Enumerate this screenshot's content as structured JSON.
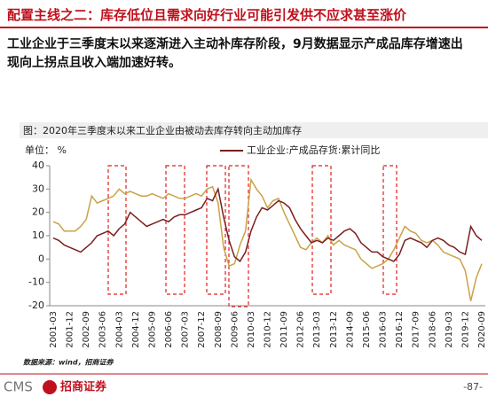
{
  "header": {
    "title": "配置主线之二：库存低位且需求向好行业可能引发供不应求甚至涨价",
    "text": "工业企业于三季度末以来逐渐进入主动补库存阶段，9月数据显示产成品库存增速出现向上拐点且收入端加速好转。"
  },
  "chart_data": {
    "type": "line",
    "title": "图：2020年三季度末以来工业企业由被动去库存转向主动加库存",
    "y_label": "单位： %",
    "categories": [
      "2001-03",
      null,
      null,
      "2001-12",
      null,
      null,
      "2002-09",
      null,
      null,
      "2003-06",
      null,
      null,
      "2004-03",
      null,
      null,
      "2004-12",
      null,
      null,
      "2005-09",
      null,
      null,
      "2006-06",
      null,
      null,
      "2007-03",
      null,
      null,
      "2007-12",
      null,
      null,
      "2008-09",
      null,
      null,
      "2009-06",
      null,
      null,
      "2010-03",
      null,
      null,
      "2010-12",
      null,
      null,
      "2011-09",
      null,
      null,
      "2012-06",
      null,
      null,
      "2013-03",
      null,
      null,
      "2013-12",
      null,
      null,
      "2014-09",
      null,
      null,
      "2015-06",
      null,
      null,
      "2016-03",
      null,
      null,
      "2016-12",
      null,
      null,
      "2017-09",
      null,
      null,
      "2018-06",
      null,
      null,
      "2019-03",
      null,
      null,
      "2019-12",
      null,
      null,
      "2020-09"
    ],
    "series": [
      {
        "name": "工业企业:产成品存货:累计同比",
        "color": "#7b1f1f",
        "values": [
          9,
          8,
          6,
          5,
          4,
          3,
          5,
          7,
          10,
          11,
          12,
          10,
          13,
          15,
          20,
          18,
          16,
          14,
          15,
          16,
          17,
          16,
          18,
          19,
          19,
          20,
          21,
          22,
          26,
          25,
          30,
          18,
          8,
          1,
          -1,
          3,
          12,
          18,
          22,
          21,
          23,
          25,
          24,
          22,
          17,
          13,
          10,
          7,
          8,
          7,
          9,
          8,
          10,
          12,
          13,
          11,
          7,
          5,
          3,
          3,
          1,
          0,
          -1,
          2,
          8,
          9,
          8,
          7,
          5,
          8,
          9,
          8,
          6,
          5,
          3,
          2,
          14,
          10,
          8
        ]
      },
      {
        "color": "#c9a347",
        "values": [
          16,
          15,
          12,
          12,
          12,
          14,
          17,
          27,
          24,
          25,
          26,
          27,
          30,
          28,
          29,
          28,
          27,
          27,
          28,
          27,
          26,
          28,
          27,
          26,
          26,
          27,
          28,
          27,
          30,
          31,
          24,
          5,
          -3,
          -2,
          6,
          12,
          34,
          30,
          27,
          22,
          25,
          26,
          20,
          15,
          10,
          5,
          4,
          7,
          9,
          7,
          10,
          6,
          8,
          6,
          5,
          4,
          0,
          -2,
          -4,
          -3,
          -2,
          0,
          4,
          9,
          14,
          12,
          11,
          8,
          7,
          8,
          6,
          3,
          2,
          1,
          0,
          -5,
          -18,
          -8,
          -2
        ]
      }
    ],
    "ylim": [
      -20,
      40
    ],
    "yticks": [
      -20,
      -10,
      0,
      10,
      20,
      30,
      40
    ]
  },
  "footer": {
    "source": "数据来源：wind，招商证券",
    "logo_text": "CMS",
    "company": "招商证券",
    "page": "-87-"
  }
}
